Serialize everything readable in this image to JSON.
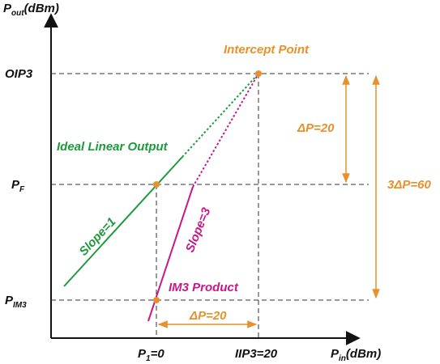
{
  "axes": {
    "y_label_main": "P",
    "y_label_sub": "out",
    "y_label_unit": "(dBm)",
    "x_label_main": "P",
    "x_label_sub": "in",
    "x_label_unit": "(dBm)"
  },
  "y_ticks": {
    "oip3": "OIP3",
    "pf_main": "P",
    "pf_sub": "F",
    "pim3_main": "P",
    "pim3_sub": "IM3"
  },
  "x_ticks": {
    "p1_main": "P",
    "p1_sub": "1",
    "p1_value": "=0",
    "iip3": "IIP3=20"
  },
  "annotations": {
    "intercept_point": "Intercept Point",
    "ideal_linear_output": "Ideal Linear Output",
    "slope1": "Slope=1",
    "slope3": "Slope=3",
    "im3_product": "IM3 Product",
    "delta_p_vertical": "ΔP=20",
    "delta_p_horizontal": "ΔP=20",
    "three_delta_p": "3ΔP=60"
  },
  "colors": {
    "green": "#1e9a3c",
    "magenta": "#c8178c",
    "orange": "#e8902a",
    "axis": "#111111",
    "dash": "#333333"
  }
}
